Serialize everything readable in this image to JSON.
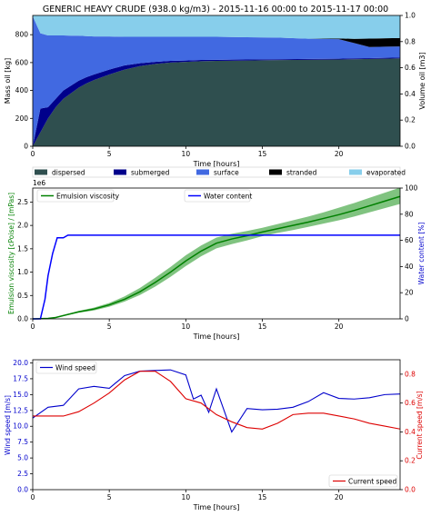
{
  "colors": {
    "dispersed": "#2f4f4f",
    "submerged": "#00008b",
    "surface": "#4169e1",
    "stranded": "#000000",
    "evaporated": "#87ceeb",
    "viscosity_line": "#008000",
    "viscosity_band": "#6ab86a",
    "water_line": "#0000ff",
    "wind_line": "#0000cc",
    "current_line": "#dd0000",
    "axis": "#000000",
    "ylabel_green": "#008000",
    "ylabel_blue": "#0000cc",
    "ylabel_red": "#dd0000"
  },
  "chart_data": [
    {
      "type": "area",
      "title": "GENERIC HEAVY CRUDE (938.0 kg/m3) - 2015-11-16 00:00 to 2015-11-17 00:00",
      "xlabel": "Time  [hours]",
      "ylabel": "Mass oil  [kg]",
      "ylabel_right": "Volume oil [m3]",
      "xlim": [
        0,
        24
      ],
      "ylim": [
        0,
        938
      ],
      "ylim_right": [
        0,
        1
      ],
      "xticks": [
        "0",
        "5",
        "10",
        "15",
        "20"
      ],
      "yticks": [
        "0",
        "200",
        "400",
        "600",
        "800"
      ],
      "yticks_right": [
        "0.0",
        "0.2",
        "0.4",
        "0.6",
        "0.8",
        "1.0"
      ],
      "legend": [
        "dispersed",
        "submerged",
        "surface",
        "stranded",
        "evaporated"
      ],
      "legend_placement": "below",
      "x": [
        0,
        0.5,
        1,
        1.5,
        2,
        2.5,
        3,
        3.5,
        4,
        5,
        6,
        7,
        8,
        9,
        10,
        11,
        12,
        14,
        16,
        18,
        20,
        21,
        22,
        23,
        24
      ],
      "series": [
        {
          "name": "dispersed",
          "values": [
            0,
            100,
            200,
            280,
            340,
            380,
            420,
            450,
            475,
            515,
            550,
            575,
            590,
            600,
            605,
            610,
            612,
            615,
            618,
            620,
            622,
            624,
            626,
            628,
            630
          ]
        },
        {
          "name": "submerged",
          "values": [
            0,
            170,
            80,
            60,
            60,
            55,
            50,
            45,
            40,
            35,
            30,
            20,
            15,
            12,
            10,
            9,
            8,
            7,
            6,
            6,
            6,
            6,
            6,
            6,
            6
          ]
        },
        {
          "name": "surface",
          "values": [
            932,
            540,
            515,
            455,
            395,
            358,
            323,
            295,
            272,
            237,
            205,
            190,
            180,
            173,
            170,
            166,
            165,
            160,
            155,
            145,
            140,
            110,
            80,
            80,
            80
          ]
        },
        {
          "name": "stranded",
          "values": [
            0,
            0,
            0,
            0,
            0,
            0,
            0,
            0,
            0,
            0,
            0,
            0,
            0,
            0,
            0,
            0,
            0,
            0,
            0,
            0,
            5,
            30,
            60,
            60,
            60
          ]
        },
        {
          "name": "evaporated",
          "values": [
            6,
            128,
            143,
            143,
            143,
            145,
            145,
            148,
            151,
            151,
            153,
            153,
            153,
            153,
            153,
            153,
            153,
            156,
            159,
            167,
            165,
            168,
            166,
            164,
            162
          ]
        }
      ]
    },
    {
      "type": "line",
      "xlabel": "Time  [hours]",
      "ylabel": "Emulsion viscosity  [cPoise] / [mPas]",
      "ylabel_right": "Water content  [%]",
      "offset_label": "1e6",
      "xlim": [
        0,
        24
      ],
      "ylim": [
        0,
        2.8
      ],
      "ylim_right": [
        0,
        100
      ],
      "xticks": [
        "0",
        "5",
        "10",
        "15",
        "20"
      ],
      "yticks": [
        "0.0",
        "0.5",
        "1.0",
        "1.5",
        "2.0",
        "2.5"
      ],
      "yticks_right": [
        "0",
        "20",
        "40",
        "60",
        "80",
        "100"
      ],
      "legend_left": "Emulsion viscosity",
      "legend_right": "Water content",
      "legend_placement": "top",
      "viscosity": {
        "x": [
          0,
          1,
          1.5,
          2,
          3,
          4,
          5,
          6,
          7,
          8,
          9,
          10,
          11,
          12,
          13,
          14,
          15,
          16,
          17,
          18,
          19,
          20,
          21,
          22,
          23,
          24
        ],
        "values": [
          0,
          0.01,
          0.03,
          0.07,
          0.15,
          0.21,
          0.3,
          0.42,
          0.58,
          0.78,
          1.0,
          1.24,
          1.45,
          1.62,
          1.71,
          1.78,
          1.86,
          1.93,
          2.0,
          2.07,
          2.15,
          2.23,
          2.32,
          2.42,
          2.52,
          2.62
        ],
        "band_upper": [
          0,
          0.012,
          0.035,
          0.08,
          0.17,
          0.24,
          0.34,
          0.48,
          0.66,
          0.88,
          1.11,
          1.36,
          1.57,
          1.74,
          1.82,
          1.88,
          1.95,
          2.03,
          2.11,
          2.19,
          2.28,
          2.38,
          2.48,
          2.59,
          2.7,
          2.81
        ],
        "band_lower": [
          0,
          0.008,
          0.025,
          0.06,
          0.13,
          0.18,
          0.26,
          0.37,
          0.51,
          0.69,
          0.9,
          1.13,
          1.34,
          1.51,
          1.6,
          1.68,
          1.77,
          1.84,
          1.9,
          1.97,
          2.04,
          2.11,
          2.19,
          2.28,
          2.37,
          2.46
        ]
      },
      "water_content": {
        "x": [
          0,
          0.5,
          0.8,
          1,
          1.3,
          1.6,
          2,
          2.3,
          2.6,
          24
        ],
        "values": [
          0,
          0,
          15,
          33,
          50,
          62,
          62,
          64,
          64,
          64
        ]
      }
    },
    {
      "type": "line",
      "xlabel": "Time  [hours]",
      "ylabel": "Wind speed  [m/s]",
      "ylabel_right": "Current speed  [m/s]",
      "xlim": [
        0,
        24
      ],
      "ylim": [
        0,
        20.5
      ],
      "ylim_right": [
        0,
        0.9
      ],
      "xticks": [
        "0",
        "5",
        "10",
        "15",
        "20"
      ],
      "yticks": [
        "0.0",
        "2.5",
        "5.0",
        "7.5",
        "10.0",
        "12.5",
        "15.0",
        "17.5",
        "20.0"
      ],
      "yticks_right": [
        "0.0",
        "0.2",
        "0.4",
        "0.6",
        "0.8"
      ],
      "legend_wind": "Wind speed",
      "legend_current": "Current speed",
      "legend_placement_wind": "top-left",
      "legend_placement_current": "bottom-right",
      "wind": {
        "x": [
          0,
          1,
          2,
          3,
          4,
          5,
          6,
          7,
          8,
          9,
          10,
          10.5,
          11,
          11.5,
          12,
          13,
          14,
          15,
          16,
          17,
          18,
          19,
          20,
          21,
          22,
          23,
          24
        ],
        "values": [
          11.3,
          13.0,
          13.3,
          15.9,
          16.3,
          16.0,
          18.0,
          18.7,
          18.8,
          18.9,
          18.1,
          14.3,
          14.9,
          12.2,
          15.9,
          9.1,
          12.8,
          12.6,
          12.7,
          13.0,
          13.9,
          15.3,
          14.4,
          14.3,
          14.5,
          15.0,
          15.1
        ]
      },
      "current": {
        "x": [
          0,
          1,
          2,
          3,
          4,
          5,
          6,
          7,
          8,
          9,
          10,
          11,
          12,
          13,
          14,
          15,
          16,
          17,
          18,
          19,
          20,
          21,
          22,
          23,
          24
        ],
        "values": [
          0.51,
          0.51,
          0.51,
          0.54,
          0.6,
          0.67,
          0.76,
          0.82,
          0.82,
          0.75,
          0.63,
          0.6,
          0.52,
          0.47,
          0.43,
          0.42,
          0.46,
          0.52,
          0.53,
          0.53,
          0.51,
          0.49,
          0.46,
          0.44,
          0.42
        ]
      }
    }
  ]
}
